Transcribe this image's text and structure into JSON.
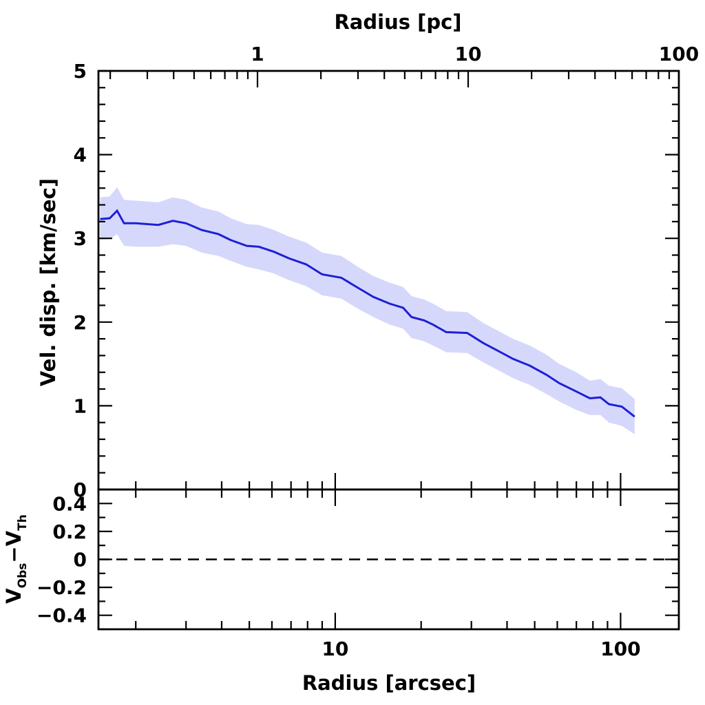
{
  "chart_data": [
    {
      "type": "area",
      "panel": "main",
      "ylabel": "Vel. disp. [km/sec]",
      "top_xlabel": "Radius [pc]",
      "xscale": "log",
      "xlim": [
        1.48,
        160
      ],
      "ylim": [
        0,
        5
      ],
      "yticks": [
        0,
        1,
        2,
        3,
        4,
        5
      ],
      "top_xticks": [
        "1",
        "10",
        "100"
      ],
      "colors": {
        "line": "#1f1fd6",
        "band": "#d5d8fb"
      },
      "series": [
        {
          "x": [
            1.5,
            1.62,
            1.72,
            1.82,
            2.0,
            2.4,
            2.7,
            3.0,
            3.4,
            3.9,
            4.3,
            4.9,
            5.4,
            6.1,
            6.9,
            7.9,
            9.0,
            10.5,
            12.0,
            13.6,
            15.5,
            17.3,
            18.5,
            20.5,
            22.0,
            24.5,
            29.0,
            33.0,
            37.0,
            42.0,
            48.0,
            55.0,
            61.0,
            70.0,
            78.0,
            85.0,
            91.0,
            101.0,
            112.0
          ],
          "y": [
            3.23,
            3.24,
            3.33,
            3.18,
            3.18,
            3.16,
            3.21,
            3.18,
            3.1,
            3.05,
            2.98,
            2.91,
            2.9,
            2.84,
            2.76,
            2.69,
            2.57,
            2.53,
            2.41,
            2.3,
            2.22,
            2.17,
            2.06,
            2.02,
            1.97,
            1.88,
            1.87,
            1.75,
            1.66,
            1.56,
            1.48,
            1.37,
            1.27,
            1.17,
            1.09,
            1.1,
            1.02,
            0.99,
            0.87
          ],
          "y_low": [
            2.98,
            2.99,
            3.05,
            2.91,
            2.9,
            2.9,
            2.93,
            2.91,
            2.83,
            2.79,
            2.73,
            2.66,
            2.63,
            2.58,
            2.5,
            2.43,
            2.32,
            2.28,
            2.16,
            2.06,
            1.97,
            1.92,
            1.81,
            1.77,
            1.72,
            1.64,
            1.63,
            1.52,
            1.43,
            1.33,
            1.25,
            1.14,
            1.05,
            0.95,
            0.89,
            0.89,
            0.8,
            0.76,
            0.66
          ],
          "y_high": [
            3.49,
            3.5,
            3.61,
            3.46,
            3.45,
            3.43,
            3.49,
            3.46,
            3.37,
            3.32,
            3.24,
            3.17,
            3.16,
            3.1,
            3.02,
            2.95,
            2.83,
            2.79,
            2.66,
            2.55,
            2.47,
            2.42,
            2.31,
            2.27,
            2.22,
            2.13,
            2.12,
            1.99,
            1.9,
            1.8,
            1.72,
            1.61,
            1.5,
            1.4,
            1.3,
            1.32,
            1.24,
            1.21,
            1.08
          ]
        }
      ]
    },
    {
      "type": "line",
      "panel": "residual",
      "ylabel": "V_Obs − V_Th",
      "ylabel_parts": {
        "a": "V",
        "a_sub": "Obs",
        "op": "−",
        "b": "V",
        "b_sub": "Th"
      },
      "xlabel": "Radius [arcsec]",
      "xscale": "log",
      "xlim": [
        1.48,
        160
      ],
      "ylim": [
        -0.5,
        0.5
      ],
      "yticks": [
        "0.4",
        "0.2",
        "0",
        "−0.2",
        "−0.4"
      ],
      "ytick_values": [
        0.4,
        0.2,
        0,
        -0.2,
        -0.4
      ],
      "xticks": [
        "10",
        "100"
      ],
      "reference_line": {
        "y": 0,
        "style": "dashed"
      }
    }
  ]
}
